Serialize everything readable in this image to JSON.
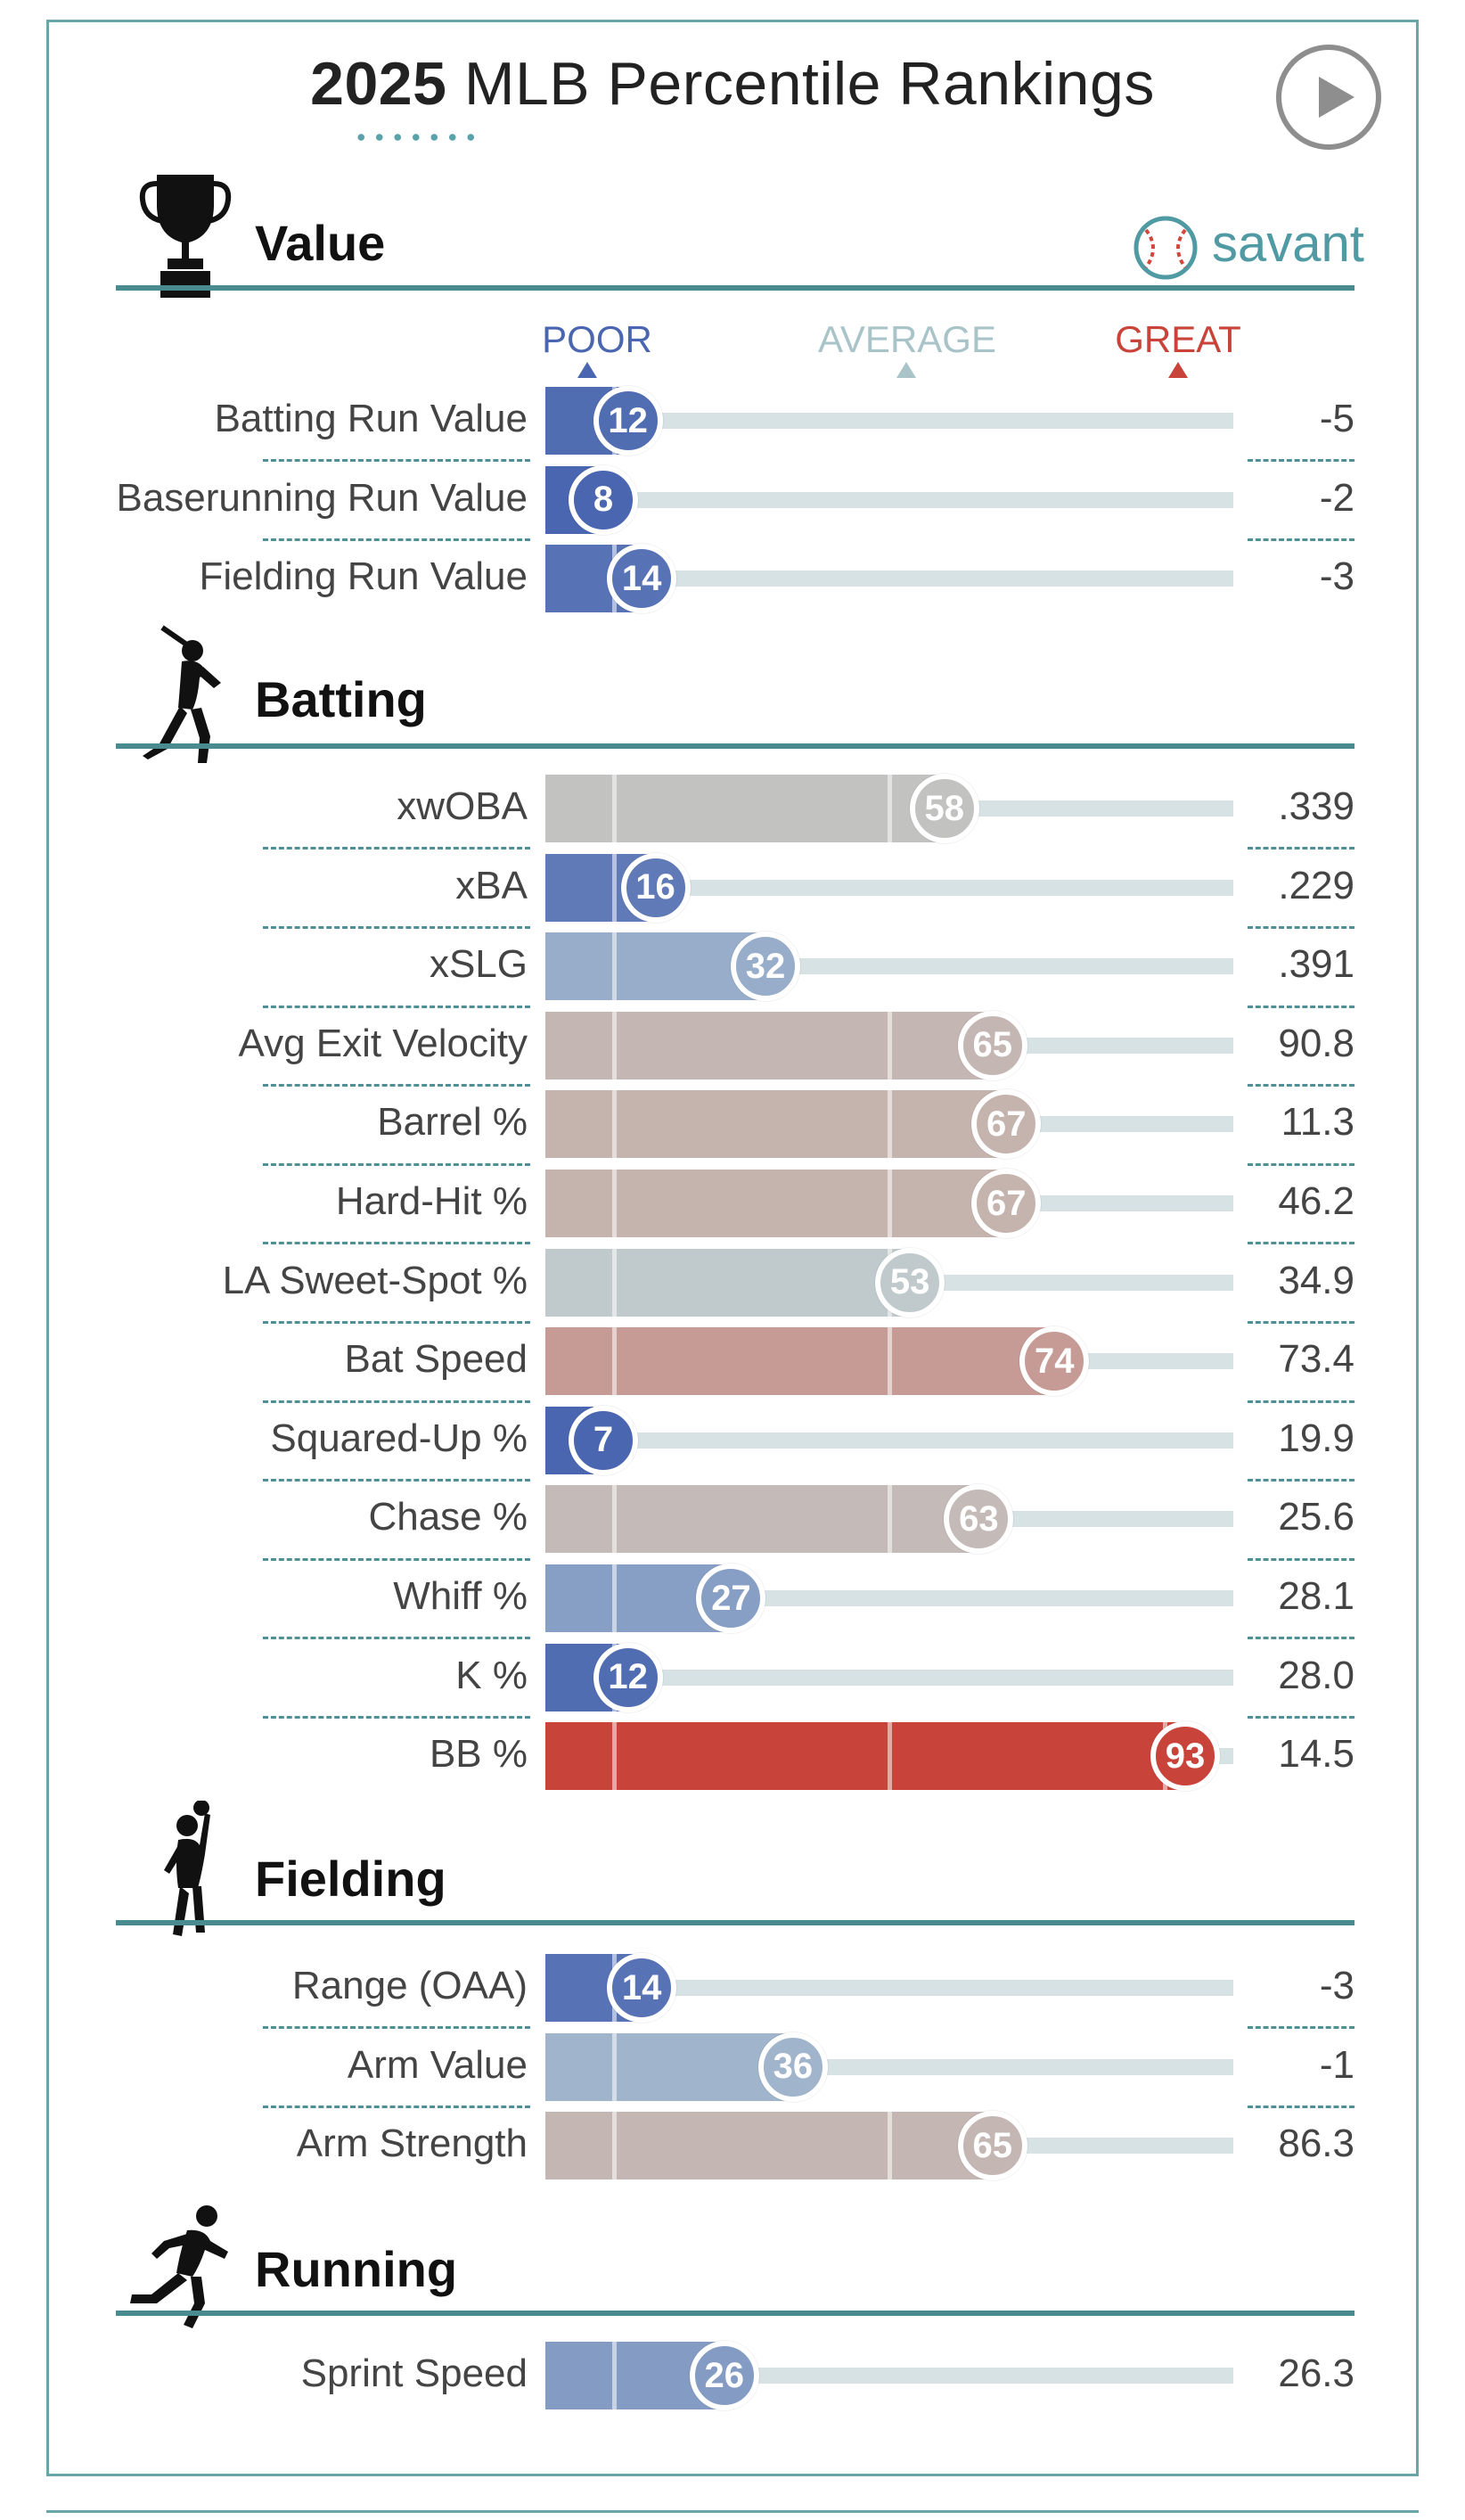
{
  "header": {
    "title_year": "2025",
    "title_rest": "MLB Percentile Rankings",
    "play_icon": "play-circle-icon"
  },
  "brand": {
    "text": "savant",
    "icon": "baseball-icon"
  },
  "scale": {
    "poor": "POOR",
    "average": "AVERAGE",
    "great": "GREAT"
  },
  "colors": {
    "poor": "#4a66b0",
    "avg_low": "#92a9c8",
    "avg_mid": "#bfcfd2",
    "avg_high": "#c6aea8",
    "great": "#c8433a",
    "accent": "#4a8b8f"
  },
  "chart_data": {
    "type": "bar",
    "orientation": "horizontal",
    "title": "2025 MLB Percentile Rankings",
    "xlim": [
      0,
      100
    ],
    "sections": [
      {
        "name": "Value",
        "icon": "trophy-icon",
        "rows": [
          {
            "label": "Batting Run Value",
            "percentile": 12,
            "value": "-5"
          },
          {
            "label": "Baserunning Run Value",
            "percentile": 8,
            "value": "-2"
          },
          {
            "label": "Fielding Run Value",
            "percentile": 14,
            "value": "-3"
          }
        ]
      },
      {
        "name": "Batting",
        "icon": "batter-icon",
        "rows": [
          {
            "label": "xwOBA",
            "percentile": 58,
            "value": ".339"
          },
          {
            "label": "xBA",
            "percentile": 16,
            "value": ".229"
          },
          {
            "label": "xSLG",
            "percentile": 32,
            "value": ".391"
          },
          {
            "label": "Avg Exit Velocity",
            "percentile": 65,
            "value": "90.8"
          },
          {
            "label": "Barrel %",
            "percentile": 67,
            "value": "11.3"
          },
          {
            "label": "Hard-Hit %",
            "percentile": 67,
            "value": "46.2"
          },
          {
            "label": "LA Sweet-Spot %",
            "percentile": 53,
            "value": "34.9"
          },
          {
            "label": "Bat Speed",
            "percentile": 74,
            "value": "73.4"
          },
          {
            "label": "Squared-Up %",
            "percentile": 7,
            "value": "19.9"
          },
          {
            "label": "Chase %",
            "percentile": 63,
            "value": "25.6"
          },
          {
            "label": "Whiff %",
            "percentile": 27,
            "value": "28.1"
          },
          {
            "label": "K %",
            "percentile": 12,
            "value": "28.0"
          },
          {
            "label": "BB %",
            "percentile": 93,
            "value": "14.5"
          }
        ]
      },
      {
        "name": "Fielding",
        "icon": "fielder-icon",
        "rows": [
          {
            "label": "Range (OAA)",
            "percentile": 14,
            "value": "-3"
          },
          {
            "label": "Arm Value",
            "percentile": 36,
            "value": "-1"
          },
          {
            "label": "Arm Strength",
            "percentile": 65,
            "value": "86.3"
          }
        ]
      },
      {
        "name": "Running",
        "icon": "runner-icon",
        "rows": [
          {
            "label": "Sprint Speed",
            "percentile": 26,
            "value": "26.3"
          }
        ]
      }
    ]
  }
}
